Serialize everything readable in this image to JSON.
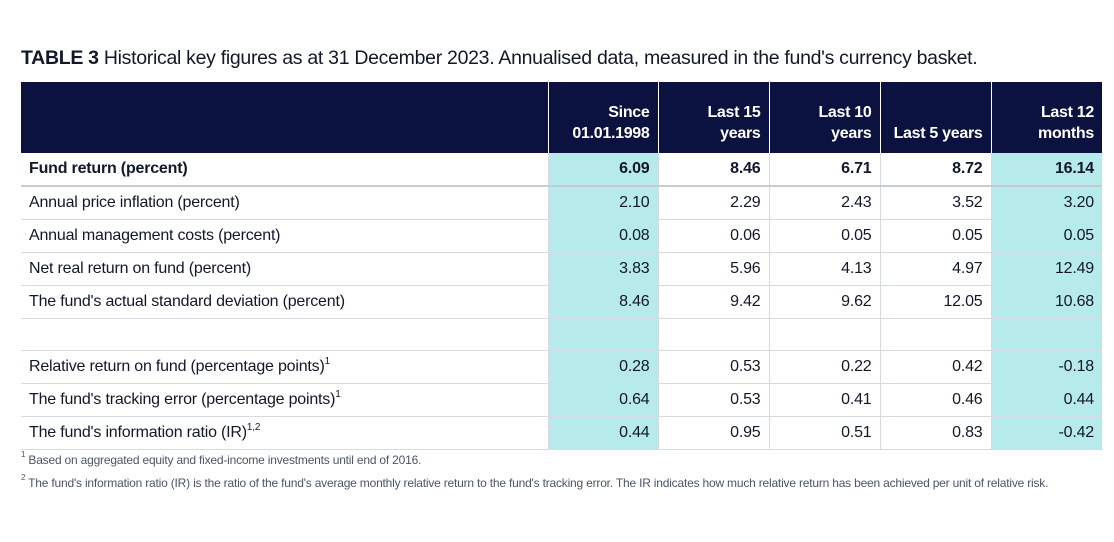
{
  "title": {
    "label": "TABLE 3",
    "text": "Historical key figures as at 31 December 2023. Annualised data, measured in the fund's currency basket."
  },
  "table": {
    "headers": [
      {
        "line1": "",
        "line2": ""
      },
      {
        "line1": "Since",
        "line2": "01.01.1998"
      },
      {
        "line1": "Last 15",
        "line2": "years"
      },
      {
        "line1": "Last 10",
        "line2": "years"
      },
      {
        "line1": "",
        "line2": "Last 5 years"
      },
      {
        "line1": "Last 12",
        "line2": "months"
      }
    ],
    "rows": [
      {
        "label": "Fund return (percent)",
        "sup": "",
        "values": [
          "6.09",
          "8.46",
          "6.71",
          "8.72",
          "16.14"
        ]
      },
      {
        "label": "Annual price inflation (percent)",
        "sup": "",
        "values": [
          "2.10",
          "2.29",
          "2.43",
          "3.52",
          "3.20"
        ]
      },
      {
        "label": "Annual management costs (percent)",
        "sup": "",
        "values": [
          "0.08",
          "0.06",
          "0.05",
          "0.05",
          "0.05"
        ]
      },
      {
        "label": "Net real return on fund (percent)",
        "sup": "",
        "values": [
          "3.83",
          "5.96",
          "4.13",
          "4.97",
          "12.49"
        ]
      },
      {
        "label": "The fund's actual standard deviation (percent)",
        "sup": "",
        "values": [
          "8.46",
          "9.42",
          "9.62",
          "12.05",
          "10.68"
        ]
      },
      {
        "label": "",
        "sup": "",
        "values": [
          "",
          "",
          "",
          "",
          ""
        ]
      },
      {
        "label": "Relative return on fund (percentage points)",
        "sup": "1",
        "values": [
          "0.28",
          "0.53",
          "0.22",
          "0.42",
          "-0.18"
        ]
      },
      {
        "label": "The fund's tracking error (percentage points)",
        "sup": "1",
        "values": [
          "0.64",
          "0.53",
          "0.41",
          "0.46",
          "0.44"
        ]
      },
      {
        "label": "The fund's information ratio (IR)",
        "sup": "1,2",
        "values": [
          "0.44",
          "0.95",
          "0.51",
          "0.83",
          "-0.42"
        ]
      }
    ]
  },
  "footnotes": [
    {
      "mark": "1",
      "text": "Based on aggregated equity and fixed-income investments until end of 2016."
    },
    {
      "mark": "2",
      "text": "The fund's information ratio (IR) is the ratio of the fund's average monthly relative return to the fund's tracking error. The IR indicates how much relative return has been achieved per unit of relative risk."
    }
  ],
  "colors": {
    "header_bg": "#0b1240",
    "highlight_bg": "#b7eaea"
  }
}
